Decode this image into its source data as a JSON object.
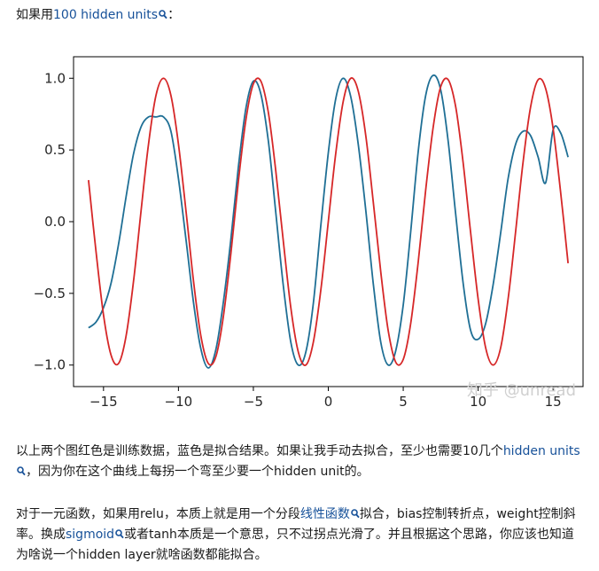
{
  "intro": {
    "prefix": "如果用",
    "link": "100 hidden units",
    "suffix": "："
  },
  "chart_data": {
    "type": "line",
    "xlim": [
      -17,
      17
    ],
    "ylim": [
      -1.15,
      1.15
    ],
    "xticks": [
      -15,
      -10,
      -5,
      0,
      5,
      10,
      15
    ],
    "yticks": [
      -1.0,
      -0.5,
      0.0,
      0.5,
      1.0
    ],
    "xtick_labels": [
      "−15",
      "−10",
      "−5",
      "0",
      "5",
      "10",
      "15"
    ],
    "ytick_labels": [
      "−1.0",
      "−0.5",
      "0.0",
      "0.5",
      "1.0"
    ],
    "grid": false,
    "series": [
      {
        "color": "#1f6f95",
        "x": [
          -16,
          -15.5,
          -15,
          -14.5,
          -14,
          -13.5,
          -13,
          -12.5,
          -12,
          -11.5,
          -11,
          -10.5,
          -10,
          -9.5,
          -9,
          -8.5,
          -8,
          -7.5,
          -7,
          -6.5,
          -6,
          -5.5,
          -5,
          -4.5,
          -4,
          -3.5,
          -3,
          -2.5,
          -2,
          -1.5,
          -1,
          -0.5,
          0,
          0.5,
          1,
          1.5,
          2,
          2.5,
          3,
          3.5,
          4,
          4.5,
          5,
          5.5,
          6,
          6.5,
          7,
          7.5,
          8,
          8.5,
          9,
          9.5,
          10,
          10.5,
          11,
          11.5,
          12,
          12.5,
          13,
          13.5,
          14,
          14.5,
          15,
          15.5,
          16
        ],
        "y": [
          -0.74,
          -0.7,
          -0.6,
          -0.43,
          -0.16,
          0.17,
          0.47,
          0.66,
          0.73,
          0.73,
          0.73,
          0.63,
          0.3,
          -0.12,
          -0.56,
          -0.89,
          -1.02,
          -0.89,
          -0.56,
          -0.12,
          0.38,
          0.79,
          0.98,
          0.89,
          0.56,
          0.06,
          -0.45,
          -0.84,
          -1.0,
          -0.91,
          -0.57,
          -0.03,
          0.48,
          0.86,
          1.0,
          0.87,
          0.54,
          0.08,
          -0.43,
          -0.84,
          -1.0,
          -0.9,
          -0.58,
          -0.07,
          0.49,
          0.88,
          1.02,
          0.92,
          0.56,
          0.05,
          -0.43,
          -0.76,
          -0.82,
          -0.71,
          -0.44,
          -0.08,
          0.3,
          0.54,
          0.63,
          0.6,
          0.45,
          0.27,
          0.64,
          0.62,
          0.45
        ]
      },
      {
        "color": "#d62728",
        "x": [
          -16,
          -15.5,
          -15,
          -14.5,
          -14,
          -13.5,
          -13,
          -12.5,
          -12,
          -11.5,
          -11,
          -10.5,
          -10,
          -9.5,
          -9,
          -8.5,
          -8,
          -7.5,
          -7,
          -6.5,
          -6,
          -5.5,
          -5,
          -4.5,
          -4,
          -3.5,
          -3,
          -2.5,
          -2,
          -1.5,
          -1,
          -0.5,
          0,
          0.5,
          1,
          1.5,
          2,
          2.5,
          3,
          3.5,
          4,
          4.5,
          5,
          5.5,
          6,
          6.5,
          7,
          7.5,
          8,
          8.5,
          9,
          9.5,
          10,
          10.5,
          11,
          11.5,
          12,
          12.5,
          13,
          13.5,
          14,
          14.5,
          15,
          15.5,
          16
        ],
        "y": [
          0.29,
          -0.21,
          -0.65,
          -0.93,
          -0.99,
          -0.8,
          -0.42,
          0.07,
          0.54,
          0.88,
          1.0,
          0.88,
          0.54,
          0.08,
          -0.41,
          -0.8,
          -0.99,
          -0.94,
          -0.66,
          -0.22,
          0.28,
          0.71,
          0.96,
          0.98,
          0.76,
          0.35,
          -0.14,
          -0.6,
          -0.91,
          -1.0,
          -0.84,
          -0.48,
          0.0,
          0.48,
          0.84,
          1.0,
          0.91,
          0.6,
          0.14,
          -0.35,
          -0.76,
          -0.98,
          -0.96,
          -0.71,
          -0.28,
          0.22,
          0.66,
          0.94,
          0.99,
          0.8,
          0.41,
          -0.08,
          -0.54,
          -0.88,
          -1.0,
          -0.88,
          -0.54,
          -0.07,
          0.42,
          0.8,
          0.99,
          0.93,
          0.65,
          0.21,
          -0.29
        ]
      }
    ]
  },
  "watermark": "知乎 @unread",
  "para2": {
    "text1": "以上两个图红色是训练数据，蓝色是拟合结果。如果让我手动去拟合，至少也需要10几个",
    "link": "hidden units",
    "text2": "，因为你在这个曲线上每拐一个弯至少要一个hidden unit的。"
  },
  "para3": {
    "text1": "对于一元函数，如果用relu，本质上就是用一个分段",
    "link1": "线性函数",
    "text2": "拟合，bias控制转折点，weight控制斜率。换成",
    "link2": "sigmoid",
    "text3": "或者tanh本质是一个意思，只不过拐点光滑了。并且根据这个思路，你应该也知道为啥说一个hidden layer就啥函数都能拟合。"
  },
  "colors": {
    "link": "#175199",
    "fit": "#1f6f95",
    "train": "#d62728"
  }
}
